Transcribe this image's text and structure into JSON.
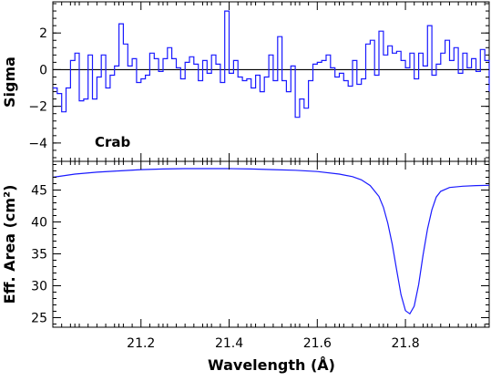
{
  "chart_data": [
    {
      "type": "line",
      "panel": "top",
      "ylabel": "Sigma",
      "annotation": "Crab",
      "xlim": [
        21.0,
        21.99
      ],
      "ylim": [
        -5,
        3.7
      ],
      "yticks": [
        -4,
        -2,
        0,
        2
      ],
      "ytick_labels": [
        "−4",
        "−2",
        "0",
        "2"
      ],
      "zero_line": true,
      "drawstyle": "steps",
      "series_color": "#1a1aff",
      "series": [
        {
          "x_edges": [
            21.0,
            21.01,
            21.02,
            21.03,
            21.04,
            21.05,
            21.06,
            21.07,
            21.08,
            21.09,
            21.1,
            21.11,
            21.12,
            21.13,
            21.14,
            21.15,
            21.16,
            21.17,
            21.18,
            21.19,
            21.2,
            21.21,
            21.22,
            21.23,
            21.24,
            21.25,
            21.26,
            21.27,
            21.28,
            21.29,
            21.3,
            21.31,
            21.32,
            21.33,
            21.34,
            21.35,
            21.36,
            21.37,
            21.38,
            21.39,
            21.4,
            21.41,
            21.42,
            21.43,
            21.44,
            21.45,
            21.46,
            21.47,
            21.48,
            21.49,
            21.5,
            21.51,
            21.52,
            21.53,
            21.54,
            21.55,
            21.56,
            21.57,
            21.58,
            21.59,
            21.6,
            21.61,
            21.62,
            21.63,
            21.64,
            21.65,
            21.66,
            21.67,
            21.68,
            21.69,
            21.7,
            21.71,
            21.72,
            21.73,
            21.74,
            21.75,
            21.76,
            21.77,
            21.78,
            21.79,
            21.8,
            21.81,
            21.82,
            21.83,
            21.84,
            21.85,
            21.86,
            21.87,
            21.88,
            21.89,
            21.9,
            21.91,
            21.92,
            21.93,
            21.94,
            21.95,
            21.96,
            21.97,
            21.98,
            21.99
          ],
          "values": [
            -1.0,
            -1.3,
            -2.3,
            -1.0,
            0.5,
            0.9,
            -1.7,
            -1.6,
            0.8,
            -1.6,
            -0.4,
            0.8,
            -1.0,
            -0.3,
            0.2,
            2.5,
            1.4,
            0.2,
            0.6,
            -0.7,
            -0.5,
            -0.3,
            0.9,
            0.6,
            -0.1,
            0.6,
            1.2,
            0.6,
            0.1,
            -0.5,
            0.4,
            0.7,
            0.3,
            -0.6,
            0.5,
            -0.2,
            0.8,
            0.3,
            -0.7,
            3.2,
            -0.2,
            0.5,
            -0.4,
            -0.6,
            -0.5,
            -1.0,
            -0.3,
            -1.2,
            -0.4,
            0.8,
            -0.6,
            1.8,
            -0.6,
            -1.2,
            0.2,
            -2.6,
            -1.6,
            -2.1,
            -0.6,
            0.3,
            0.4,
            0.5,
            0.8,
            0.1,
            -0.4,
            -0.2,
            -0.6,
            -0.9,
            0.5,
            -0.8,
            -0.5,
            1.4,
            1.6,
            -0.3,
            2.1,
            0.8,
            1.3,
            0.9,
            1.0,
            0.5,
            0.1,
            0.9,
            -0.5,
            0.9,
            0.2,
            2.4,
            -0.3,
            0.3,
            0.9,
            1.6,
            0.5,
            1.2,
            -0.2,
            0.9,
            0.1,
            0.6,
            -0.1,
            1.1,
            0.5,
            -1.2
          ]
        }
      ]
    },
    {
      "type": "line",
      "panel": "bottom",
      "xlabel": "Wavelength (Å)",
      "ylabel": "Eff. Area (cm²)",
      "xlim": [
        21.0,
        21.99
      ],
      "ylim": [
        23.5,
        49.5
      ],
      "xticks": [
        21.2,
        21.4,
        21.6,
        21.8
      ],
      "xtick_labels": [
        "21.2",
        "21.4",
        "21.6",
        "21.8"
      ],
      "yticks": [
        25,
        30,
        35,
        40,
        45
      ],
      "ytick_labels": [
        "25",
        "30",
        "35",
        "40",
        "45"
      ],
      "series_color": "#1a1aff",
      "series": [
        {
          "x": [
            21.0,
            21.05,
            21.1,
            21.15,
            21.2,
            21.25,
            21.3,
            21.35,
            21.4,
            21.45,
            21.5,
            21.55,
            21.6,
            21.65,
            21.68,
            21.7,
            21.72,
            21.74,
            21.75,
            21.76,
            21.77,
            21.78,
            21.79,
            21.8,
            21.81,
            21.82,
            21.83,
            21.84,
            21.85,
            21.86,
            21.87,
            21.88,
            21.9,
            21.93,
            21.96,
            21.99
          ],
          "y": [
            47.0,
            47.5,
            47.8,
            48.0,
            48.2,
            48.3,
            48.35,
            48.35,
            48.35,
            48.3,
            48.2,
            48.1,
            47.9,
            47.5,
            47.1,
            46.6,
            45.7,
            44.0,
            42.3,
            39.8,
            36.5,
            32.5,
            28.6,
            26.1,
            25.6,
            26.8,
            30.2,
            34.8,
            38.9,
            41.9,
            43.9,
            44.8,
            45.4,
            45.6,
            45.7,
            45.75
          ]
        }
      ]
    }
  ]
}
